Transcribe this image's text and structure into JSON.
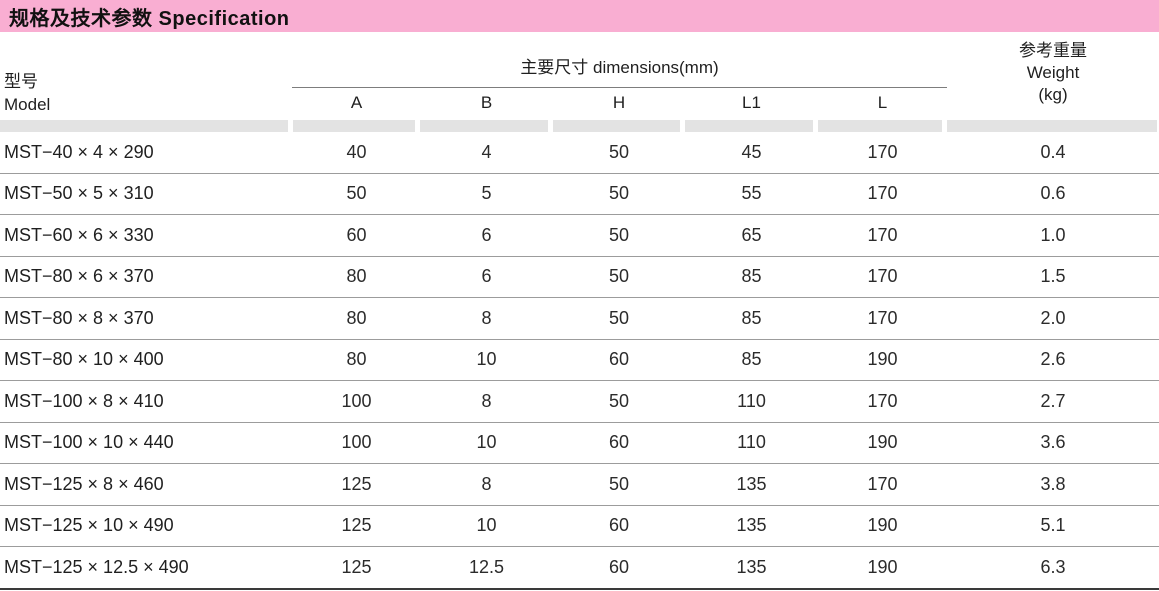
{
  "title_bar": {
    "text": "规格及技术参数  Specification",
    "bg_color": "#f9aed2"
  },
  "table": {
    "model_header": {
      "zh": "型号",
      "en": "Model"
    },
    "dims_header": "主要尺寸  dimensions(mm)",
    "dim_columns": [
      "A",
      "B",
      "H",
      "L1",
      "L"
    ],
    "weight_header": {
      "zh": "参考重量",
      "en": "Weight",
      "unit": "(kg)"
    },
    "rows": [
      {
        "model": "MST−40 × 4 × 290",
        "A": "40",
        "B": "4",
        "H": "50",
        "L1": "45",
        "L": "170",
        "weight": "0.4"
      },
      {
        "model": "MST−50 × 5 × 310",
        "A": "50",
        "B": "5",
        "H": "50",
        "L1": "55",
        "L": "170",
        "weight": "0.6"
      },
      {
        "model": "MST−60 × 6 × 330",
        "A": "60",
        "B": "6",
        "H": "50",
        "L1": "65",
        "L": "170",
        "weight": "1.0"
      },
      {
        "model": "MST−80 × 6 × 370",
        "A": "80",
        "B": "6",
        "H": "50",
        "L1": "85",
        "L": "170",
        "weight": "1.5"
      },
      {
        "model": "MST−80 × 8 × 370",
        "A": "80",
        "B": "8",
        "H": "50",
        "L1": "85",
        "L": "170",
        "weight": "2.0"
      },
      {
        "model": "MST−80 × 10 × 400",
        "A": "80",
        "B": "10",
        "H": "60",
        "L1": "85",
        "L": "190",
        "weight": "2.6"
      },
      {
        "model": "MST−100 × 8 × 410",
        "A": "100",
        "B": "8",
        "H": "50",
        "L1": "110",
        "L": "170",
        "weight": "2.7"
      },
      {
        "model": "MST−100 × 10 × 440",
        "A": "100",
        "B": "10",
        "H": "60",
        "L1": "110",
        "L": "190",
        "weight": "3.6"
      },
      {
        "model": "MST−125 × 8 × 460",
        "A": "125",
        "B": "8",
        "H": "50",
        "L1": "135",
        "L": "170",
        "weight": "3.8"
      },
      {
        "model": "MST−125 × 10 × 490",
        "A": "125",
        "B": "10",
        "H": "60",
        "L1": "135",
        "L": "190",
        "weight": "5.1"
      },
      {
        "model": "MST−125 × 12.5 × 490",
        "A": "125",
        "B": "12.5",
        "H": "60",
        "L1": "135",
        "L": "190",
        "weight": "6.3"
      }
    ]
  }
}
